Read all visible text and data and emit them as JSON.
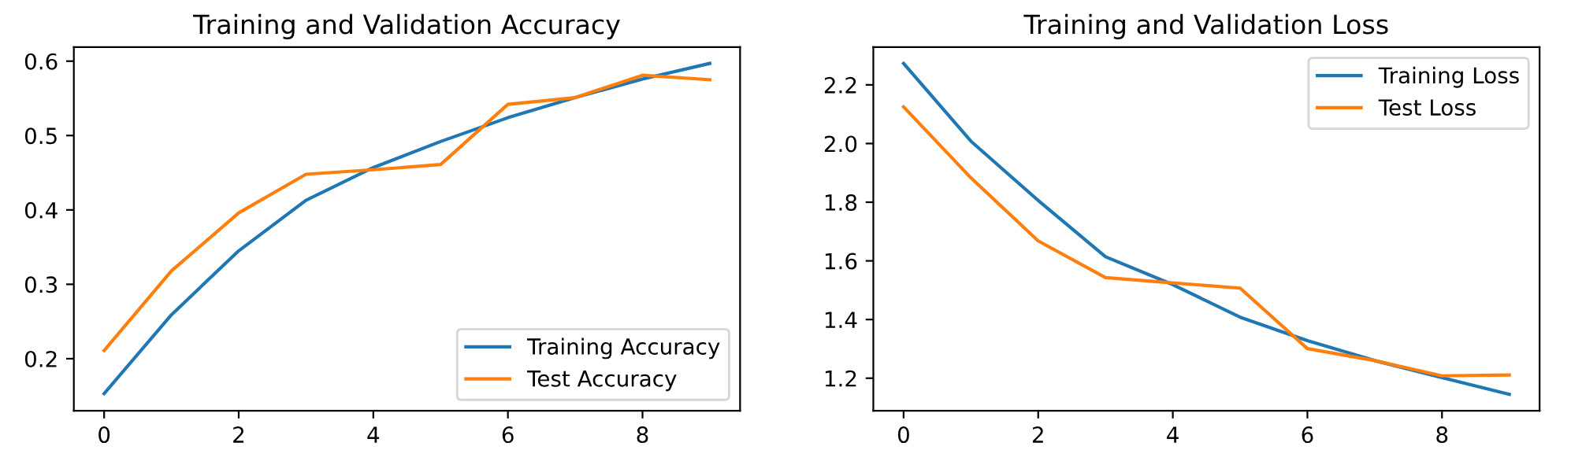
{
  "chart_data": [
    {
      "type": "line",
      "title": "Training and Validation Accuracy",
      "x": [
        0,
        1,
        2,
        3,
        4,
        5,
        6,
        7,
        8,
        9
      ],
      "xlim": [
        -0.45,
        9.45
      ],
      "xticks": [
        0,
        2,
        4,
        6,
        8
      ],
      "ylim": [
        0.13,
        0.619
      ],
      "yticks": [
        0.2,
        0.3,
        0.4,
        0.5,
        0.6
      ],
      "grid": false,
      "legend": "bottom right",
      "series": [
        {
          "name": "Training Accuracy",
          "color": "#1f77b4",
          "values": [
            0.153,
            0.259,
            0.345,
            0.413,
            0.457,
            0.492,
            0.524,
            0.551,
            0.576,
            0.597
          ]
        },
        {
          "name": "Test Accuracy",
          "color": "#ff7f0e",
          "values": [
            0.211,
            0.318,
            0.396,
            0.448,
            0.454,
            0.461,
            0.542,
            0.551,
            0.581,
            0.575
          ]
        }
      ]
    },
    {
      "type": "line",
      "title": "Training and Validation Loss",
      "x": [
        0,
        1,
        2,
        3,
        4,
        5,
        6,
        7,
        8,
        9
      ],
      "xlim": [
        -0.45,
        9.45
      ],
      "xticks": [
        0,
        2,
        4,
        6,
        8
      ],
      "ylim": [
        1.089,
        2.329
      ],
      "yticks": [
        1.2,
        1.4,
        1.6,
        1.8,
        {
          "value": 2.0,
          "label": "2.0"
        },
        2.2
      ],
      "grid": false,
      "legend": "top right",
      "series": [
        {
          "name": "Training Loss",
          "color": "#1f77b4",
          "values": [
            2.273,
            2.008,
            1.806,
            1.614,
            1.519,
            1.408,
            1.328,
            1.26,
            1.202,
            1.145
          ]
        },
        {
          "name": "Test Loss",
          "color": "#ff7f0e",
          "values": [
            2.125,
            1.883,
            1.668,
            1.543,
            1.525,
            1.507,
            1.301,
            1.26,
            1.208,
            1.211
          ]
        }
      ]
    }
  ]
}
